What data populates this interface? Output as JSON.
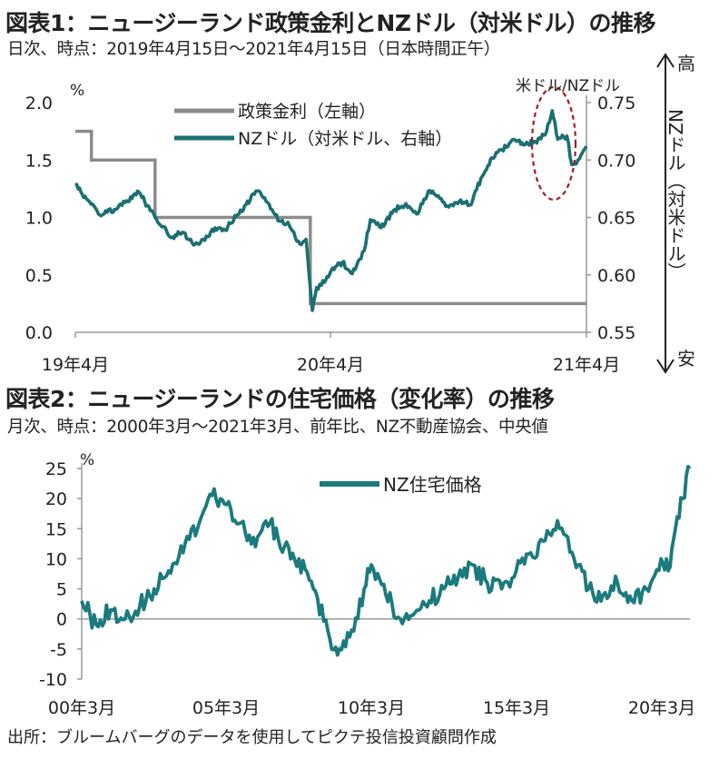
{
  "chart1": {
    "title": "図表1：ニュージーランド政策金利とNZドル（対米ドル）の推移",
    "subtitle": "日次、時点：2019年4月15日～2021年4月15日（日本時間正午）",
    "left_unit": "%",
    "right_axis_label": "NZドル（対米ドル）",
    "high_label": "高",
    "low_label": "安",
    "annotation": "米ドル/NZドル"
  },
  "chart2": {
    "title": "図表2：ニュージーランドの住宅価格（変化率）の推移",
    "subtitle": "月次、時点：2000年3月～2021年3月、前年比、NZ不動産協会、中央値",
    "left_unit": "%"
  },
  "source": "出所：ブルームバーグのデータを使用してピクテ投信投資顧問作成",
  "colors": {
    "rate": "#8c8c8c",
    "nzd": "#1b6f72",
    "housing": "#1b7a7d",
    "annotation": "#a01c24",
    "axis": "#999999"
  },
  "chart_data": [
    {
      "type": "line",
      "x_ticks": [
        "19年4月",
        "20年4月",
        "21年4月"
      ],
      "y_ticks_left": [
        "0.0",
        "0.5",
        "1.0",
        "1.5",
        "2.0"
      ],
      "y_ticks_right": [
        "0.55",
        "0.60",
        "0.65",
        "0.70",
        "0.75"
      ],
      "ylim_left": [
        0,
        2.0
      ],
      "ylim_right": [
        0.55,
        0.75
      ],
      "x_range": [
        "2019-04-15",
        "2021-04-15"
      ],
      "series": [
        {
          "name": "政策金利（左軸）",
          "axis": "left",
          "points": [
            [
              "2019-04-15",
              1.75
            ],
            [
              "2019-05-08",
              1.75
            ],
            [
              "2019-05-08",
              1.5
            ],
            [
              "2019-08-07",
              1.5
            ],
            [
              "2019-08-07",
              1.0
            ],
            [
              "2020-03-16",
              1.0
            ],
            [
              "2020-03-16",
              0.25
            ],
            [
              "2021-04-15",
              0.25
            ]
          ]
        },
        {
          "name": "NZドル（対米ドル、右軸）",
          "axis": "right",
          "points": [
            [
              "2019-04-15",
              0.678
            ],
            [
              "2019-05-01",
              0.666
            ],
            [
              "2019-05-20",
              0.652
            ],
            [
              "2019-06-10",
              0.657
            ],
            [
              "2019-06-25",
              0.663
            ],
            [
              "2019-07-15",
              0.672
            ],
            [
              "2019-07-31",
              0.656
            ],
            [
              "2019-08-15",
              0.643
            ],
            [
              "2019-09-01",
              0.633
            ],
            [
              "2019-09-15",
              0.637
            ],
            [
              "2019-10-01",
              0.626
            ],
            [
              "2019-10-15",
              0.631
            ],
            [
              "2019-11-01",
              0.641
            ],
            [
              "2019-11-15",
              0.639
            ],
            [
              "2019-12-01",
              0.651
            ],
            [
              "2019-12-15",
              0.661
            ],
            [
              "2019-12-31",
              0.673
            ],
            [
              "2020-01-15",
              0.663
            ],
            [
              "2020-02-01",
              0.647
            ],
            [
              "2020-02-15",
              0.643
            ],
            [
              "2020-03-01",
              0.627
            ],
            [
              "2020-03-10",
              0.631
            ],
            [
              "2020-03-19",
              0.569
            ],
            [
              "2020-03-25",
              0.589
            ],
            [
              "2020-04-01",
              0.591
            ],
            [
              "2020-04-15",
              0.604
            ],
            [
              "2020-05-01",
              0.611
            ],
            [
              "2020-05-15",
              0.601
            ],
            [
              "2020-06-01",
              0.621
            ],
            [
              "2020-06-10",
              0.648
            ],
            [
              "2020-06-25",
              0.641
            ],
            [
              "2020-07-15",
              0.657
            ],
            [
              "2020-07-31",
              0.662
            ],
            [
              "2020-08-15",
              0.653
            ],
            [
              "2020-09-01",
              0.673
            ],
            [
              "2020-09-15",
              0.669
            ],
            [
              "2020-09-30",
              0.659
            ],
            [
              "2020-10-15",
              0.664
            ],
            [
              "2020-11-01",
              0.661
            ],
            [
              "2020-11-15",
              0.684
            ],
            [
              "2020-12-01",
              0.702
            ],
            [
              "2020-12-15",
              0.709
            ],
            [
              "2021-01-01",
              0.718
            ],
            [
              "2021-01-15",
              0.713
            ],
            [
              "2021-02-01",
              0.716
            ],
            [
              "2021-02-15",
              0.722
            ],
            [
              "2021-02-25",
              0.743
            ],
            [
              "2021-03-05",
              0.718
            ],
            [
              "2021-03-18",
              0.721
            ],
            [
              "2021-03-25",
              0.696
            ],
            [
              "2021-04-05",
              0.701
            ],
            [
              "2021-04-15",
              0.712
            ]
          ]
        }
      ],
      "legend": "top-left"
    },
    {
      "type": "line",
      "x_ticks": [
        "00年3月",
        "05年3月",
        "10年3月",
        "15年3月",
        "20年3月"
      ],
      "y_ticks": [
        "-10",
        "-5",
        "0",
        "5",
        "10",
        "15",
        "20",
        "25"
      ],
      "ylim": [
        -10,
        25
      ],
      "x_range": [
        "2000-03",
        "2021-03"
      ],
      "series": [
        {
          "name": "NZ住宅価格",
          "points": [
            [
              "2000-03",
              3
            ],
            [
              "2000-09",
              -1
            ],
            [
              "2001-03",
              1.5
            ],
            [
              "2001-09",
              0
            ],
            [
              "2002-03",
              2
            ],
            [
              "2002-09",
              5
            ],
            [
              "2003-03",
              8
            ],
            [
              "2003-09",
              11
            ],
            [
              "2004-03",
              15
            ],
            [
              "2004-09",
              20.5
            ],
            [
              "2005-03",
              19
            ],
            [
              "2005-09",
              16
            ],
            [
              "2006-03",
              12
            ],
            [
              "2006-09",
              16
            ],
            [
              "2007-03",
              12
            ],
            [
              "2007-09",
              10
            ],
            [
              "2008-03",
              5
            ],
            [
              "2008-09",
              -2
            ],
            [
              "2009-01",
              -6
            ],
            [
              "2009-06",
              -3
            ],
            [
              "2009-12",
              5
            ],
            [
              "2010-03",
              9
            ],
            [
              "2010-09",
              4
            ],
            [
              "2011-03",
              0
            ],
            [
              "2011-09",
              1
            ],
            [
              "2012-03",
              3
            ],
            [
              "2012-09",
              5
            ],
            [
              "2013-03",
              7
            ],
            [
              "2013-09",
              9
            ],
            [
              "2014-03",
              6
            ],
            [
              "2014-09",
              5
            ],
            [
              "2015-03",
              8
            ],
            [
              "2015-09",
              11
            ],
            [
              "2016-03",
              13
            ],
            [
              "2016-09",
              15
            ],
            [
              "2017-03",
              10
            ],
            [
              "2017-09",
              5
            ],
            [
              "2018-03",
              4
            ],
            [
              "2018-09",
              6
            ],
            [
              "2019-03",
              3
            ],
            [
              "2019-09",
              5
            ],
            [
              "2020-03",
              10
            ],
            [
              "2020-06",
              8
            ],
            [
              "2020-09",
              15
            ],
            [
              "2020-12",
              20
            ],
            [
              "2021-03",
              25
            ]
          ]
        }
      ],
      "legend": "top-center"
    }
  ]
}
